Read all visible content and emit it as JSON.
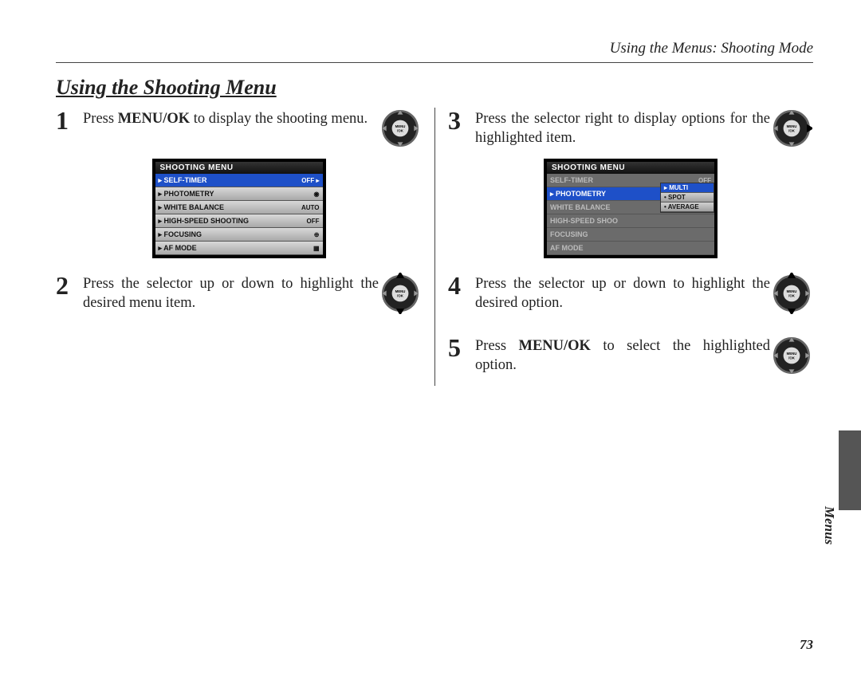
{
  "header": "Using the Menus: Shooting Mode",
  "title": "Using the Shooting Menu",
  "steps": {
    "s1": {
      "num": "1",
      "pre": "Press ",
      "bold": "MENU/OK",
      "post": " to display the shoot­ing menu."
    },
    "s2": {
      "num": "2",
      "text": "Press the selector up or down to highlight the desired menu item."
    },
    "s3": {
      "num": "3",
      "text": "Press the selector right to display options for the highlighted item."
    },
    "s4": {
      "num": "4",
      "text": "Press the selector up or down to highlight the desired option."
    },
    "s5": {
      "num": "5",
      "pre": "Press ",
      "bold": "MENU/OK",
      "post": " to select the high­lighted option."
    }
  },
  "lcd1": {
    "title": "SHOOTING MENU",
    "rows": [
      {
        "label": "SELF-TIMER",
        "value": "OFF ▸",
        "selected": true
      },
      {
        "label": "PHOTOMETRY",
        "value": "◉"
      },
      {
        "label": "WHITE BALANCE",
        "value": "AUTO"
      },
      {
        "label": "HIGH-SPEED SHOOTING",
        "value": "OFF"
      },
      {
        "label": "FOCUSING",
        "value": "⊕"
      },
      {
        "label": "AF MODE",
        "value": "▦"
      }
    ]
  },
  "lcd2": {
    "title": "SHOOTING MENU",
    "rows": [
      {
        "label": "SELF-TIMER",
        "value": "OFF",
        "dim": true
      },
      {
        "label": "PHOTOMETRY",
        "value": "",
        "selected": true
      },
      {
        "label": "WHITE BALANCE",
        "value": "",
        "dim": true
      },
      {
        "label": "HIGH-SPEED SHOO",
        "value": "",
        "dim": true
      },
      {
        "label": "FOCUSING",
        "value": "",
        "dim": true
      },
      {
        "label": "AF MODE",
        "value": "",
        "dim": true
      }
    ],
    "options": [
      {
        "label": "MULTI",
        "selected": true
      },
      {
        "label": "SPOT"
      },
      {
        "label": "AVERAGE"
      }
    ]
  },
  "side_label": "Menus",
  "page_number": "73",
  "dial_label": "MENU\n/OK"
}
